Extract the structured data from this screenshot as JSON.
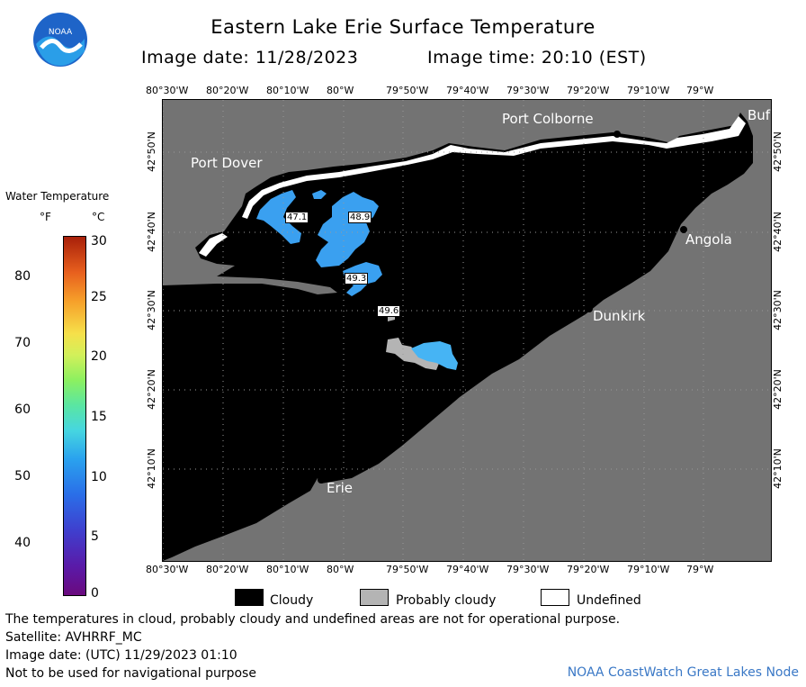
{
  "header": {
    "title": "Eastern Lake Erie Surface Temperature",
    "image_date": "Image date: 11/28/2023",
    "image_time": "Image time: 20:10 (EST)"
  },
  "logo": {
    "text": "NOAA"
  },
  "map": {
    "lon_labels": [
      "80°30'W",
      "80°20'W",
      "80°10'W",
      "80°W",
      "79°50'W",
      "79°40'W",
      "79°30'W",
      "79°20'W",
      "79°10'W",
      "79°W"
    ],
    "lat_labels": [
      "42°50'N",
      "42°40'N",
      "42°30'N",
      "42°20'N",
      "42°10'N"
    ],
    "places": {
      "port_colborne": "Port Colborne",
      "port_dover": "Port Dover",
      "buffalo": "Buf",
      "angola": "Angola",
      "dunkirk": "Dunkirk",
      "erie": "Erie"
    },
    "temperature_labels": [
      "47.1",
      "48.9",
      "49.3",
      "49.6"
    ],
    "colors": {
      "land": "#737373",
      "cloud": "#000000",
      "probably_cloudy": "#b4b4b4",
      "undefined": "#ffffff",
      "water_cold": "#3aa0f0",
      "water_warm": "#46b4f4"
    }
  },
  "colorbar": {
    "title": "Water Temperature",
    "unit_f": "°F",
    "unit_c": "°C",
    "fahrenheit_ticks": [
      "80",
      "70",
      "60",
      "50",
      "40"
    ],
    "celsius_ticks": [
      "30",
      "25",
      "20",
      "15",
      "10",
      "5",
      "0"
    ]
  },
  "legend": {
    "cloudy": "Cloudy",
    "probably_cloudy": "Probably cloudy",
    "undefined": "Undefined"
  },
  "footer": {
    "disclaimer": "The temperatures in cloud, probably cloudy and undefined areas are not for operational purpose.",
    "satellite": "Satellite: AVHRRF_MC",
    "utc_date": "Image date: (UTC) 11/29/2023  01:10",
    "nav_warning": "Not to be used for navigational purpose",
    "credit": "NOAA CoastWatch Great Lakes Node"
  }
}
